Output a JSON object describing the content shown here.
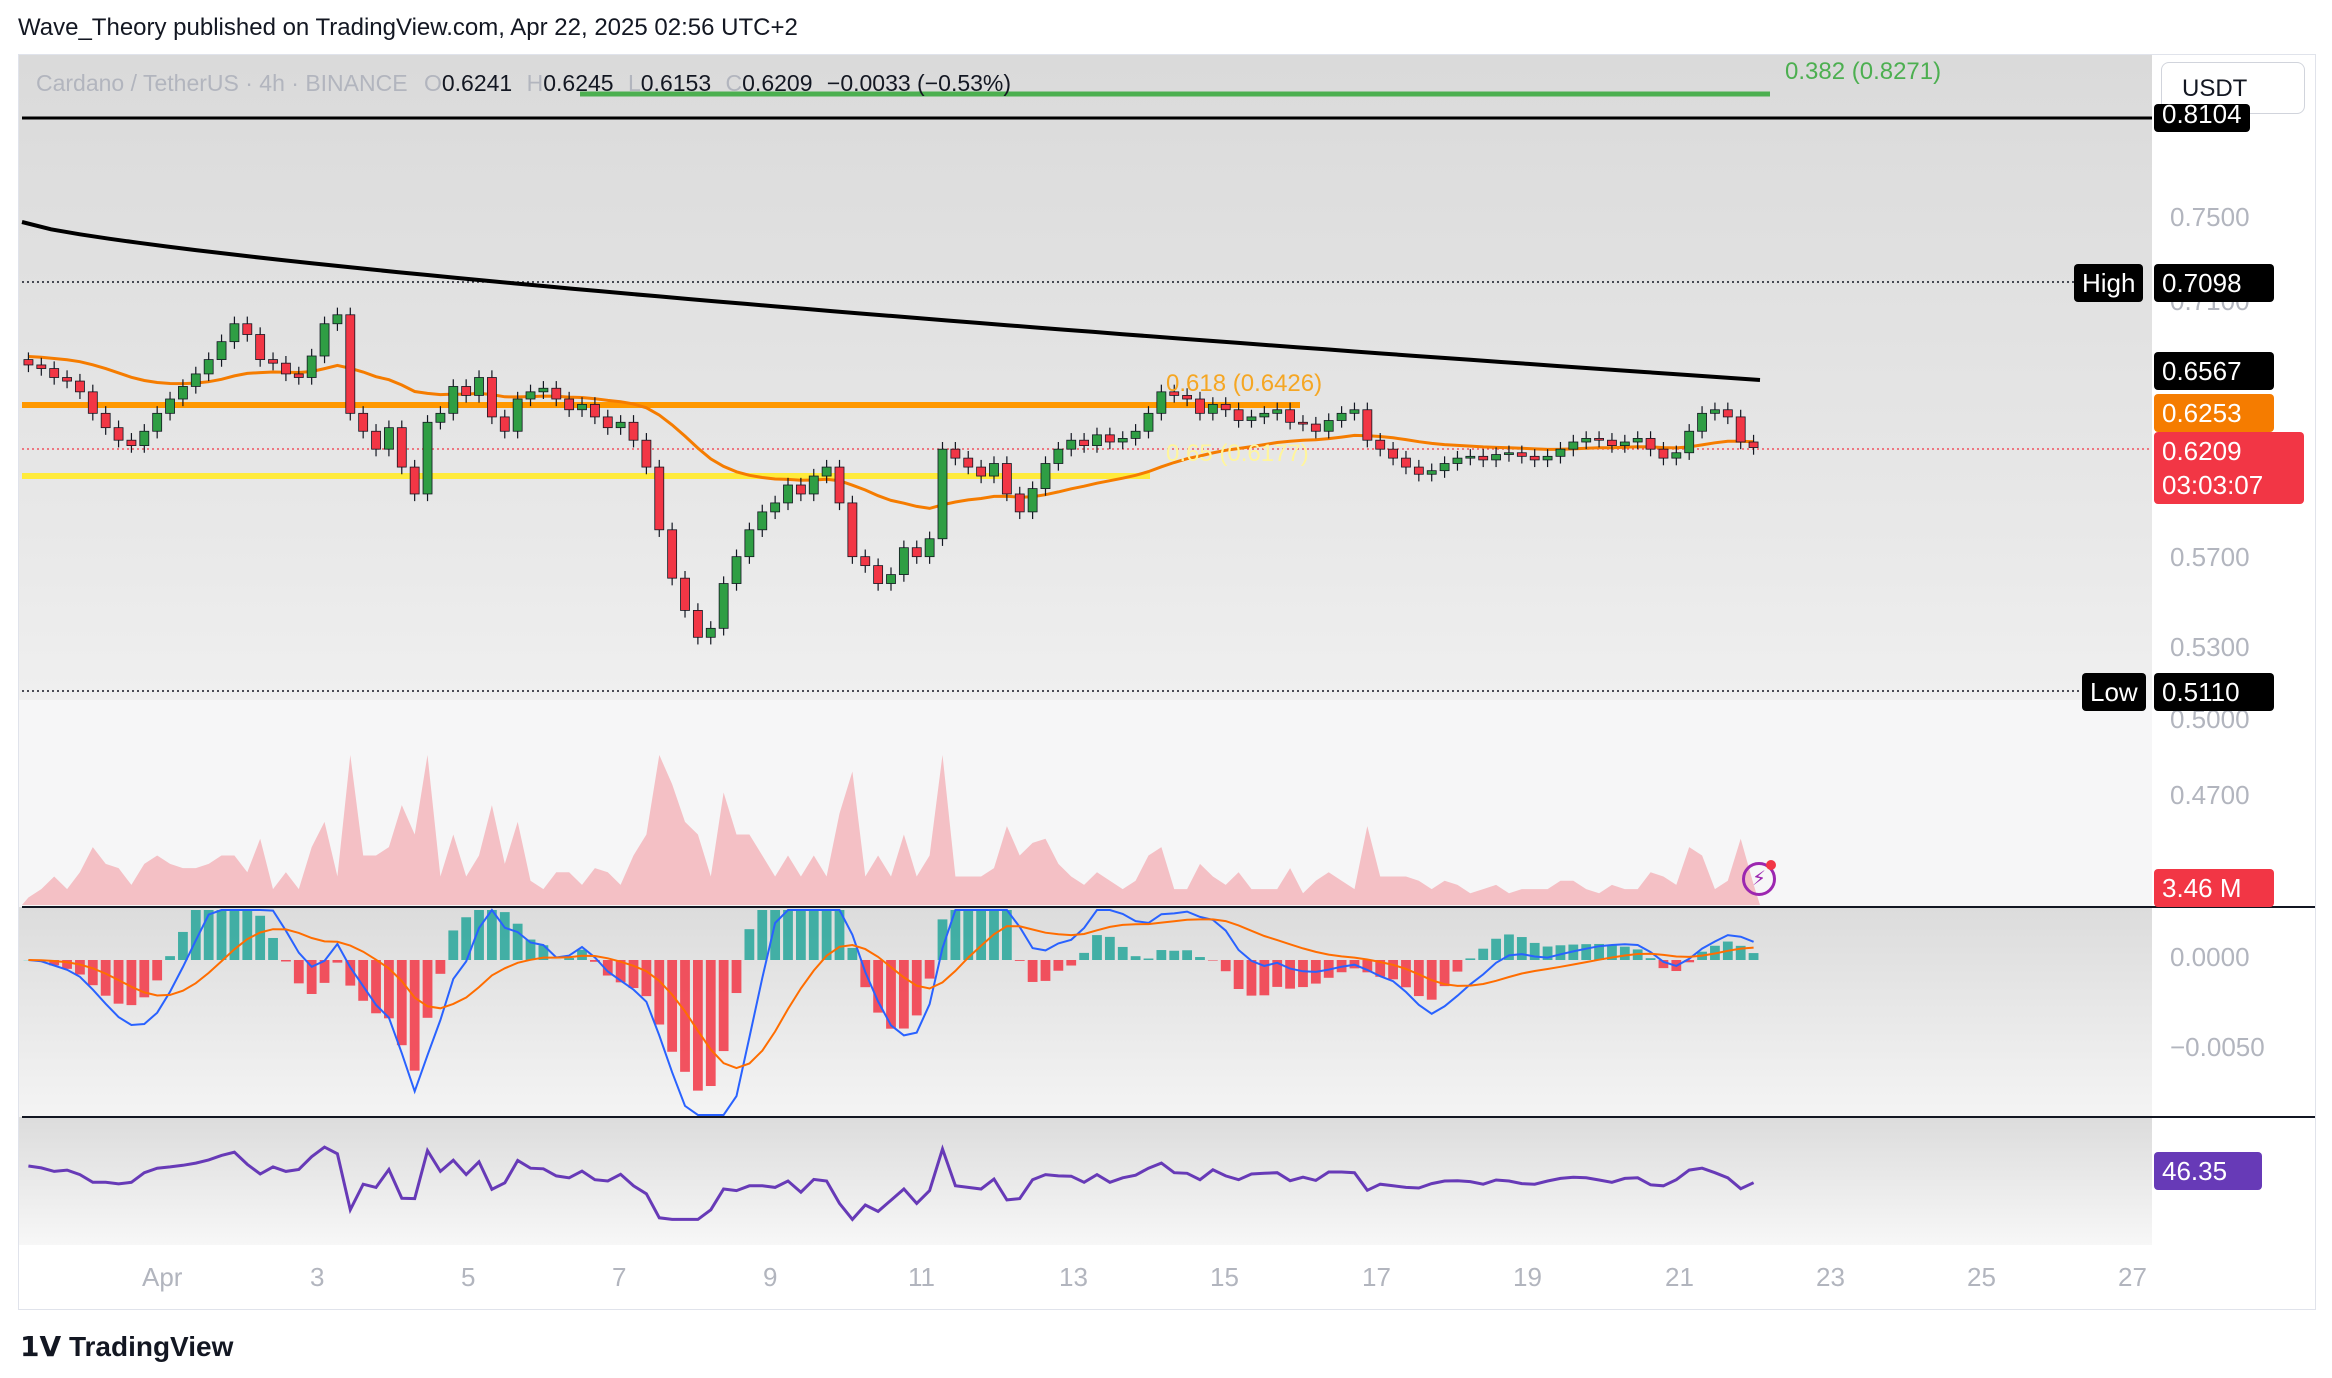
{
  "credit": "Wave_Theory published on TradingView.com, Apr 22, 2025 02:56 UTC+2",
  "legend": {
    "symbol": "Cardano / TetherUS · 4h · BINANCE",
    "o_label": "O",
    "o": "0.6241",
    "h_label": "H",
    "h": "0.6245",
    "l_label": "L",
    "l": "0.6153",
    "c_label": "C",
    "c": "0.6209",
    "change": "−0.0033 (−0.53%)"
  },
  "currency_button": "USDT",
  "fib_labels": {
    "f382": "0.382 (0.8271)",
    "f618": "0.618 (0.6426)",
    "f65": "0.65 (0.6177)"
  },
  "price_tags": {
    "top_black": "0.8104",
    "high_label": "High",
    "high": "0.7098",
    "ema200": "0.6567",
    "ema50": "0.6253",
    "last": "0.6209",
    "countdown": "03:03:07",
    "low_label": "Low",
    "low": "0.5110",
    "volume": "3.46 M",
    "rsi": "46.35"
  },
  "price_axis": [
    "0.7500",
    "0.7100",
    "0.5700",
    "0.5300",
    "0.5000",
    "0.4700"
  ],
  "macd_axis": [
    "0.0000",
    "−0.0050"
  ],
  "date_axis": [
    "Apr",
    "3",
    "5",
    "7",
    "9",
    "11",
    "13",
    "15",
    "17",
    "19",
    "21",
    "23",
    "25",
    "27"
  ],
  "brand": "TradingView",
  "colors": {
    "up": "#26a69a",
    "up_candle": "#2f9e44",
    "down": "#f23645",
    "ema200": "#000000",
    "ema50": "#f57c00",
    "orange_level": "#ff9800",
    "yellow_level": "#ffeb3b",
    "fib_green": "#4caf50",
    "macd": "#2962ff",
    "signal": "#ff6d00",
    "rsi": "#673ab7"
  },
  "chart_data": {
    "type": "candlestick",
    "symbol": "Cardano / TetherUS",
    "interval": "4h",
    "exchange": "BINANCE",
    "ohlc_last": {
      "open": 0.6241,
      "high": 0.6245,
      "low": 0.6153,
      "close": 0.6209
    },
    "x_labels": [
      "Apr",
      "3",
      "5",
      "7",
      "9",
      "11",
      "13",
      "15",
      "17",
      "19",
      "21",
      "23",
      "25",
      "27"
    ],
    "closes_approx": [
      0.667,
      0.665,
      0.66,
      0.658,
      0.652,
      0.64,
      0.632,
      0.625,
      0.622,
      0.63,
      0.64,
      0.648,
      0.655,
      0.662,
      0.67,
      0.68,
      0.69,
      0.684,
      0.67,
      0.668,
      0.662,
      0.66,
      0.672,
      0.69,
      0.695,
      0.64,
      0.63,
      0.62,
      0.632,
      0.61,
      0.595,
      0.635,
      0.64,
      0.655,
      0.65,
      0.66,
      0.638,
      0.63,
      0.648,
      0.652,
      0.654,
      0.648,
      0.642,
      0.645,
      0.638,
      0.632,
      0.635,
      0.625,
      0.61,
      0.575,
      0.548,
      0.53,
      0.515,
      0.52,
      0.545,
      0.56,
      0.575,
      0.585,
      0.59,
      0.6,
      0.595,
      0.605,
      0.61,
      0.59,
      0.56,
      0.555,
      0.545,
      0.55,
      0.565,
      0.56,
      0.57,
      0.62,
      0.615,
      0.61,
      0.605,
      0.612,
      0.595,
      0.585,
      0.598,
      0.612,
      0.62,
      0.625,
      0.622,
      0.628,
      0.624,
      0.626,
      0.63,
      0.64,
      0.652,
      0.65,
      0.648,
      0.64,
      0.645,
      0.642,
      0.636,
      0.638,
      0.64,
      0.642,
      0.635,
      0.634,
      0.63,
      0.636,
      0.64,
      0.642,
      0.625,
      0.62,
      0.615,
      0.61,
      0.606,
      0.608,
      0.612,
      0.615,
      0.616,
      0.614,
      0.617,
      0.618,
      0.616,
      0.614,
      0.616,
      0.62,
      0.624,
      0.626,
      0.625,
      0.622,
      0.624,
      0.626,
      0.62,
      0.615,
      0.618,
      0.63,
      0.64,
      0.642,
      0.638,
      0.624,
      0.6209
    ],
    "ema200_label": 0.6567,
    "ema50_label": 0.6253,
    "horizontal_levels": {
      "orange": 0.6426,
      "yellow": 0.6177,
      "high": 0.7098,
      "low": 0.511,
      "fib_0382": 0.8271,
      "top": 0.8104
    },
    "indicators": {
      "volume_last": "3.46 M",
      "macd_axis": [
        0.0,
        -0.005
      ],
      "rsi_last": 46.35
    },
    "price_range": [
      0.48,
      0.84
    ]
  }
}
